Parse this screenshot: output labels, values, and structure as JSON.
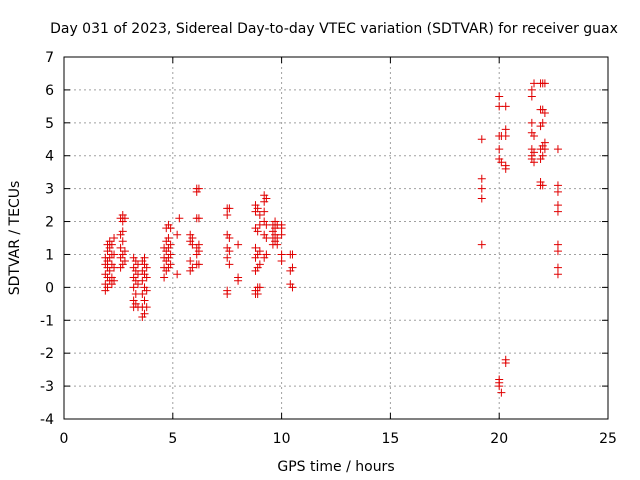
{
  "chart_data": {
    "type": "scatter",
    "title": "Day 031 of 2023, Sidereal Day-to-day VTEC variation (SDTVAR) for receiver guax",
    "xlabel": "GPS time / hours",
    "ylabel": "SDTVAR / TECUs",
    "xlim": [
      0,
      25
    ],
    "ylim": [
      -4,
      7
    ],
    "xticks": [
      0,
      5,
      10,
      15,
      20,
      25
    ],
    "yticks": [
      -4,
      -3,
      -2,
      -1,
      0,
      1,
      2,
      3,
      4,
      5,
      6,
      7
    ],
    "grid": true,
    "marker": "+",
    "color": "#e00000",
    "series": [
      {
        "name": "SDTVAR",
        "points": [
          [
            1.9,
            -0.1
          ],
          [
            1.9,
            0.1
          ],
          [
            1.9,
            0.4
          ],
          [
            1.9,
            0.7
          ],
          [
            1.9,
            0.9
          ],
          [
            2.0,
            0.0
          ],
          [
            2.0,
            0.3
          ],
          [
            2.0,
            0.6
          ],
          [
            2.0,
            0.8
          ],
          [
            2.0,
            1.1
          ],
          [
            2.0,
            1.3
          ],
          [
            2.1,
            0.2
          ],
          [
            2.1,
            0.5
          ],
          [
            2.1,
            0.9
          ],
          [
            2.1,
            1.2
          ],
          [
            2.1,
            1.4
          ],
          [
            2.2,
            0.1
          ],
          [
            2.2,
            0.3
          ],
          [
            2.2,
            0.7
          ],
          [
            2.2,
            1.0
          ],
          [
            2.2,
            1.3
          ],
          [
            2.3,
            0.2
          ],
          [
            2.3,
            0.6
          ],
          [
            2.3,
            1.0
          ],
          [
            2.3,
            1.5
          ],
          [
            2.6,
            0.6
          ],
          [
            2.6,
            0.9
          ],
          [
            2.6,
            1.2
          ],
          [
            2.6,
            1.6
          ],
          [
            2.6,
            2.1
          ],
          [
            2.7,
            0.7
          ],
          [
            2.7,
            1.0
          ],
          [
            2.7,
            1.4
          ],
          [
            2.7,
            1.7
          ],
          [
            2.7,
            2.0
          ],
          [
            2.7,
            2.2
          ],
          [
            2.8,
            0.8
          ],
          [
            2.8,
            1.1
          ],
          [
            2.8,
            2.1
          ],
          [
            3.2,
            -0.6
          ],
          [
            3.2,
            -0.4
          ],
          [
            3.2,
            0.0
          ],
          [
            3.2,
            0.3
          ],
          [
            3.2,
            0.6
          ],
          [
            3.2,
            0.9
          ],
          [
            3.3,
            -0.5
          ],
          [
            3.3,
            -0.2
          ],
          [
            3.3,
            0.2
          ],
          [
            3.3,
            0.5
          ],
          [
            3.3,
            0.8
          ],
          [
            3.4,
            -0.6
          ],
          [
            3.4,
            0.1
          ],
          [
            3.4,
            0.4
          ],
          [
            3.4,
            0.7
          ],
          [
            3.6,
            -0.9
          ],
          [
            3.6,
            -0.6
          ],
          [
            3.6,
            -0.2
          ],
          [
            3.6,
            0.2
          ],
          [
            3.6,
            0.5
          ],
          [
            3.6,
            0.8
          ],
          [
            3.7,
            -0.8
          ],
          [
            3.7,
            -0.4
          ],
          [
            3.7,
            0.0
          ],
          [
            3.7,
            0.4
          ],
          [
            3.7,
            0.7
          ],
          [
            3.7,
            0.9
          ],
          [
            3.8,
            -0.6
          ],
          [
            3.8,
            -0.1
          ],
          [
            3.8,
            0.3
          ],
          [
            3.8,
            0.6
          ],
          [
            4.6,
            0.3
          ],
          [
            4.6,
            0.6
          ],
          [
            4.6,
            0.9
          ],
          [
            4.6,
            1.2
          ],
          [
            4.7,
            0.5
          ],
          [
            4.7,
            0.8
          ],
          [
            4.7,
            1.1
          ],
          [
            4.7,
            1.4
          ],
          [
            4.7,
            1.8
          ],
          [
            4.8,
            0.6
          ],
          [
            4.8,
            0.9
          ],
          [
            4.8,
            1.2
          ],
          [
            4.8,
            1.5
          ],
          [
            4.8,
            1.9
          ],
          [
            4.9,
            0.7
          ],
          [
            4.9,
            1.0
          ],
          [
            4.9,
            1.3
          ],
          [
            4.9,
            1.8
          ],
          [
            5.2,
            0.4
          ],
          [
            5.2,
            1.6
          ],
          [
            5.3,
            2.1
          ],
          [
            5.8,
            0.5
          ],
          [
            5.8,
            0.8
          ],
          [
            5.8,
            1.4
          ],
          [
            5.8,
            1.6
          ],
          [
            5.9,
            0.6
          ],
          [
            5.9,
            1.3
          ],
          [
            5.9,
            1.5
          ],
          [
            6.1,
            0.7
          ],
          [
            6.1,
            1.0
          ],
          [
            6.1,
            1.2
          ],
          [
            6.1,
            2.1
          ],
          [
            6.1,
            2.9
          ],
          [
            6.1,
            3.0
          ],
          [
            6.2,
            0.7
          ],
          [
            6.2,
            1.1
          ],
          [
            6.2,
            1.3
          ],
          [
            6.2,
            2.1
          ],
          [
            6.2,
            3.0
          ],
          [
            7.5,
            -0.2
          ],
          [
            7.5,
            -0.1
          ],
          [
            7.5,
            0.9
          ],
          [
            7.5,
            1.2
          ],
          [
            7.5,
            1.6
          ],
          [
            7.5,
            2.2
          ],
          [
            7.5,
            2.4
          ],
          [
            7.6,
            0.7
          ],
          [
            7.6,
            1.1
          ],
          [
            7.6,
            1.5
          ],
          [
            7.6,
            2.4
          ],
          [
            8.0,
            0.2
          ],
          [
            8.0,
            0.3
          ],
          [
            8.0,
            1.3
          ],
          [
            8.8,
            -0.2
          ],
          [
            8.8,
            -0.1
          ],
          [
            8.8,
            0.5
          ],
          [
            8.8,
            0.9
          ],
          [
            8.8,
            1.2
          ],
          [
            8.8,
            1.8
          ],
          [
            8.8,
            2.3
          ],
          [
            8.8,
            2.5
          ],
          [
            8.9,
            -0.2
          ],
          [
            8.9,
            0.0
          ],
          [
            8.9,
            0.6
          ],
          [
            8.9,
            1.0
          ],
          [
            8.9,
            1.7
          ],
          [
            8.9,
            2.4
          ],
          [
            9.0,
            0.0
          ],
          [
            9.0,
            0.7
          ],
          [
            9.0,
            1.1
          ],
          [
            9.0,
            1.9
          ],
          [
            9.0,
            2.2
          ],
          [
            9.2,
            0.9
          ],
          [
            9.2,
            1.6
          ],
          [
            9.2,
            2.0
          ],
          [
            9.2,
            2.3
          ],
          [
            9.2,
            2.6
          ],
          [
            9.2,
            2.8
          ],
          [
            9.3,
            1.0
          ],
          [
            9.3,
            1.5
          ],
          [
            9.3,
            1.9
          ],
          [
            9.3,
            2.7
          ],
          [
            9.6,
            1.3
          ],
          [
            9.6,
            1.5
          ],
          [
            9.6,
            1.7
          ],
          [
            9.6,
            1.9
          ],
          [
            9.7,
            1.4
          ],
          [
            9.7,
            1.6
          ],
          [
            9.7,
            1.8
          ],
          [
            9.7,
            2.0
          ],
          [
            9.8,
            1.3
          ],
          [
            9.8,
            1.5
          ],
          [
            9.8,
            1.9
          ],
          [
            10.0,
            0.8
          ],
          [
            10.0,
            1.0
          ],
          [
            10.0,
            1.6
          ],
          [
            10.0,
            1.8
          ],
          [
            10.0,
            1.9
          ],
          [
            10.4,
            0.1
          ],
          [
            10.4,
            0.5
          ],
          [
            10.4,
            1.0
          ],
          [
            10.5,
            0.0
          ],
          [
            10.5,
            0.6
          ],
          [
            10.5,
            1.0
          ],
          [
            19.2,
            1.3
          ],
          [
            19.2,
            2.7
          ],
          [
            19.2,
            3.0
          ],
          [
            19.2,
            3.3
          ],
          [
            19.2,
            4.5
          ],
          [
            20.0,
            -2.8
          ],
          [
            20.0,
            -2.9
          ],
          [
            20.0,
            -3.0
          ],
          [
            20.0,
            3.9
          ],
          [
            20.0,
            4.2
          ],
          [
            20.0,
            4.6
          ],
          [
            20.0,
            5.5
          ],
          [
            20.0,
            5.8
          ],
          [
            20.1,
            -3.2
          ],
          [
            20.1,
            3.8
          ],
          [
            20.1,
            4.6
          ],
          [
            20.3,
            -2.3
          ],
          [
            20.3,
            -2.2
          ],
          [
            20.3,
            3.6
          ],
          [
            20.3,
            3.7
          ],
          [
            20.3,
            4.6
          ],
          [
            20.3,
            4.8
          ],
          [
            20.3,
            5.5
          ],
          [
            21.5,
            3.9
          ],
          [
            21.5,
            4.0
          ],
          [
            21.5,
            4.2
          ],
          [
            21.5,
            4.7
          ],
          [
            21.5,
            5.0
          ],
          [
            21.5,
            5.8
          ],
          [
            21.5,
            6.0
          ],
          [
            21.6,
            3.8
          ],
          [
            21.6,
            4.1
          ],
          [
            21.6,
            4.6
          ],
          [
            21.6,
            6.2
          ],
          [
            21.9,
            3.1
          ],
          [
            21.9,
            3.2
          ],
          [
            21.9,
            3.9
          ],
          [
            21.9,
            4.2
          ],
          [
            21.9,
            4.9
          ],
          [
            21.9,
            5.4
          ],
          [
            21.9,
            6.2
          ],
          [
            22.0,
            3.1
          ],
          [
            22.0,
            4.0
          ],
          [
            22.0,
            4.3
          ],
          [
            22.0,
            5.0
          ],
          [
            22.0,
            5.4
          ],
          [
            22.0,
            6.2
          ],
          [
            22.1,
            4.2
          ],
          [
            22.1,
            4.4
          ],
          [
            22.1,
            5.3
          ],
          [
            22.1,
            6.2
          ],
          [
            22.7,
            0.4
          ],
          [
            22.7,
            0.6
          ],
          [
            22.7,
            1.1
          ],
          [
            22.7,
            1.3
          ],
          [
            22.7,
            2.3
          ],
          [
            22.7,
            2.5
          ],
          [
            22.7,
            2.9
          ],
          [
            22.7,
            3.1
          ],
          [
            22.7,
            4.2
          ]
        ]
      }
    ]
  }
}
